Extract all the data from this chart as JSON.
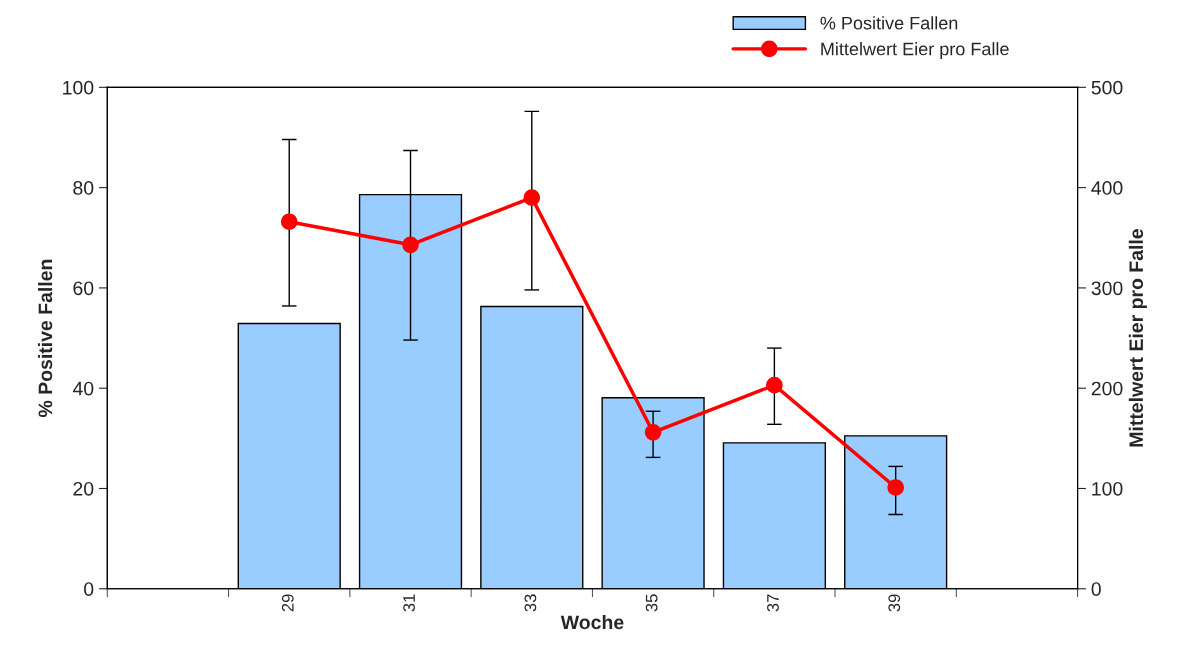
{
  "chart_data": {
    "type": "bar",
    "xlabel": "Woche",
    "ylabel": "% Positive Fallen",
    "y2label": "Mittelwert Eier pro Falle",
    "categories": [
      null,
      "29",
      "31",
      "33",
      "35",
      "37",
      "39",
      null
    ],
    "series": [
      {
        "name": "% Positive Fallen",
        "color": "#99ccff",
        "values": [
          null,
          52.9,
          78.6,
          56.3,
          38.1,
          29.1,
          30.5,
          null
        ]
      },
      {
        "name": "Mittelwert Eier pro Falle",
        "type": "line",
        "axis": "y2",
        "color": "#ff0000",
        "marker": "circle",
        "values": [
          null,
          366,
          343,
          390,
          156,
          203,
          101,
          null
        ],
        "errors": [
          null,
          [
            282,
            448
          ],
          [
            248,
            437
          ],
          [
            298,
            476
          ],
          [
            131,
            177
          ],
          [
            164,
            240
          ],
          [
            74,
            122
          ],
          null
        ]
      }
    ],
    "ylim": [
      0,
      100
    ],
    "yticks": [
      0,
      20,
      40,
      60,
      80,
      100
    ],
    "y2lim": [
      0,
      500
    ],
    "y2ticks": [
      0,
      100,
      200,
      300,
      400,
      500
    ],
    "grid": false,
    "legend": "top right"
  }
}
